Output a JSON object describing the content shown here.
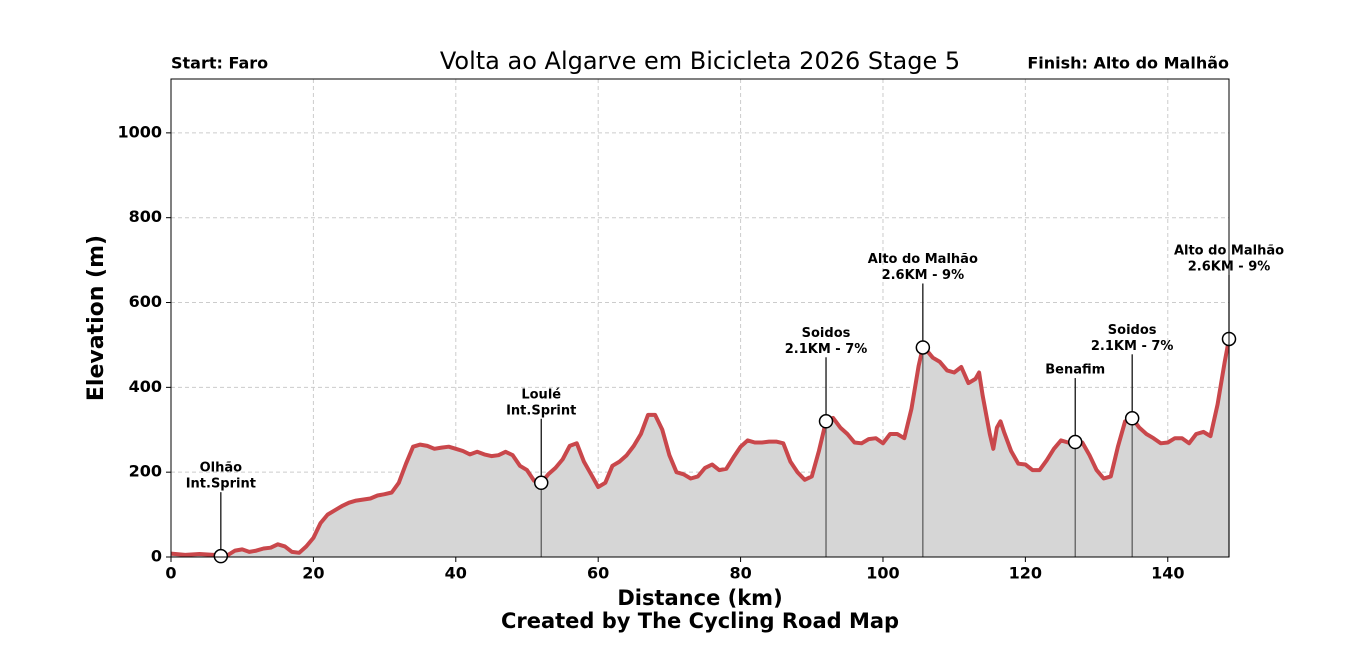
{
  "chart_data": {
    "type": "area",
    "title": "Volta ao Algarve em Bicicleta 2026 Stage 5",
    "start_label": "Start: Faro",
    "finish_label": "Finish: Alto do Malhão",
    "xlabel": "Distance (km)",
    "ylabel": "Elevation (m)",
    "credit": "Created by The Cycling Road Map",
    "color": "#c9474b",
    "fill_color": "#d6d6d6",
    "grid": true,
    "xlim": [
      0,
      148.6
    ],
    "ylim": [
      0,
      1127
    ],
    "xticks": [
      0,
      20,
      40,
      60,
      80,
      100,
      120,
      140
    ],
    "yticks": [
      0,
      200,
      400,
      600,
      800,
      1000
    ],
    "x": [
      0,
      2,
      4,
      6,
      7,
      8,
      9,
      10,
      11,
      12,
      13,
      14,
      15,
      16,
      17,
      18,
      19,
      20,
      21,
      22,
      23,
      24,
      25,
      26,
      28,
      29,
      30,
      31,
      32,
      33,
      34,
      35,
      36,
      37,
      38,
      39,
      40,
      41,
      42,
      43,
      44,
      45,
      46,
      47,
      48,
      49,
      50,
      51,
      52,
      53,
      54,
      55,
      56,
      57,
      58,
      59,
      60,
      61,
      62,
      63,
      64,
      65,
      66,
      67,
      68,
      69,
      70,
      71,
      72,
      73,
      74,
      75,
      76,
      77,
      78,
      79,
      80,
      81,
      82,
      83,
      84,
      85,
      86,
      87,
      88,
      89,
      90,
      91,
      92,
      93,
      94,
      95,
      96,
      97,
      98,
      99,
      100,
      101,
      102,
      103,
      104,
      105,
      105.6,
      106,
      107,
      108,
      109,
      110,
      111,
      112,
      113,
      113.5,
      114,
      115,
      115.5,
      116,
      116.5,
      117,
      118,
      119,
      120,
      121,
      122,
      123,
      124,
      125,
      126,
      127,
      128,
      129,
      130,
      131,
      132,
      133,
      134,
      135,
      136,
      137,
      138,
      139,
      140,
      141,
      142,
      143,
      144,
      145,
      146,
      147,
      148,
      148.6
    ],
    "values": [
      8,
      5,
      7,
      5,
      2,
      5,
      15,
      18,
      12,
      15,
      20,
      22,
      30,
      25,
      12,
      10,
      25,
      45,
      80,
      100,
      110,
      120,
      128,
      133,
      138,
      145,
      148,
      152,
      175,
      220,
      260,
      265,
      262,
      255,
      258,
      260,
      255,
      250,
      242,
      248,
      242,
      238,
      240,
      248,
      240,
      215,
      205,
      180,
      175,
      195,
      210,
      230,
      262,
      268,
      225,
      195,
      165,
      175,
      215,
      225,
      240,
      262,
      290,
      335,
      335,
      300,
      240,
      200,
      195,
      185,
      190,
      210,
      218,
      205,
      208,
      235,
      260,
      275,
      270,
      270,
      272,
      272,
      268,
      225,
      200,
      182,
      190,
      250,
      320,
      328,
      305,
      290,
      270,
      268,
      278,
      280,
      268,
      290,
      290,
      280,
      350,
      450,
      494,
      490,
      470,
      460,
      440,
      435,
      448,
      410,
      420,
      435,
      380,
      290,
      255,
      305,
      320,
      295,
      250,
      220,
      218,
      205,
      205,
      228,
      255,
      275,
      270,
      271,
      270,
      240,
      205,
      185,
      190,
      260,
      320,
      327,
      305,
      290,
      280,
      268,
      270,
      280,
      280,
      268,
      290,
      295,
      285,
      360,
      460,
      514
    ],
    "annotations": [
      {
        "x": 7,
        "y": 2,
        "label_lines": [
          "Olhão",
          "Int.Sprint"
        ]
      },
      {
        "x": 52,
        "y": 175,
        "label_lines": [
          "Loulé",
          "Int.Sprint"
        ]
      },
      {
        "x": 92,
        "y": 320,
        "label_lines": [
          "Soidos",
          "2.1KM - 7%"
        ]
      },
      {
        "x": 105.6,
        "y": 494,
        "label_lines": [
          "Alto do Malhão",
          "2.6KM - 9%"
        ]
      },
      {
        "x": 127,
        "y": 271,
        "label_lines": [
          "Benafim"
        ]
      },
      {
        "x": 135,
        "y": 327,
        "label_lines": [
          "Soidos",
          "2.1KM - 7%"
        ]
      },
      {
        "x": 148.6,
        "y": 514,
        "label_lines": [
          "Alto do Malhão",
          "2.6KM - 9%"
        ]
      }
    ]
  }
}
